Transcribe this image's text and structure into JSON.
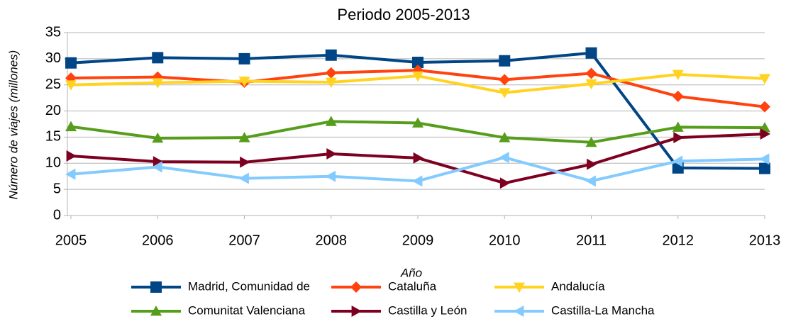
{
  "chart_data": {
    "type": "line",
    "title": "Periodo 2005-2013",
    "x_label": "Año",
    "y_label": "Número de viajes (millones)",
    "x": [
      2005,
      2006,
      2007,
      2008,
      2009,
      2010,
      2011,
      2012,
      2013
    ],
    "xlim": [
      2005,
      2013
    ],
    "xticks": [
      2005,
      2006,
      2007,
      2008,
      2009,
      2010,
      2011,
      2012,
      2013
    ],
    "ylim": [
      0,
      35
    ],
    "yticks": [
      0,
      5,
      10,
      15,
      20,
      25,
      30,
      35
    ],
    "grid": true,
    "legend": "bottom",
    "series": [
      {
        "name": "Madrid, Comunidad de",
        "color": "#004586",
        "marker": "square",
        "values": [
          29.2,
          30.2,
          30.0,
          30.7,
          29.3,
          29.6,
          31.1,
          9.1,
          9.0
        ]
      },
      {
        "name": "Cataluña",
        "color": "#ff420e",
        "marker": "diamond",
        "values": [
          26.3,
          26.5,
          25.5,
          27.3,
          27.8,
          26.0,
          27.2,
          22.8,
          20.8
        ]
      },
      {
        "name": "Andalucía",
        "color": "#ffd320",
        "marker": "triangle-down",
        "values": [
          25.0,
          25.4,
          25.7,
          25.5,
          26.7,
          23.5,
          25.2,
          27.0,
          26.2
        ]
      },
      {
        "name": "Comunitat Valenciana",
        "color": "#579d1c",
        "marker": "triangle-up",
        "values": [
          17.0,
          14.8,
          14.9,
          18.0,
          17.7,
          14.9,
          14.0,
          16.9,
          16.8
        ]
      },
      {
        "name": "Castilla y León",
        "color": "#7e0021",
        "marker": "triangle-right",
        "values": [
          11.4,
          10.3,
          10.2,
          11.8,
          11.0,
          6.2,
          9.8,
          14.9,
          15.6
        ]
      },
      {
        "name": "Castilla-La Mancha",
        "color": "#83caff",
        "marker": "triangle-left",
        "values": [
          7.9,
          9.3,
          7.1,
          7.5,
          6.6,
          11.1,
          6.6,
          10.4,
          10.8
        ]
      }
    ]
  }
}
